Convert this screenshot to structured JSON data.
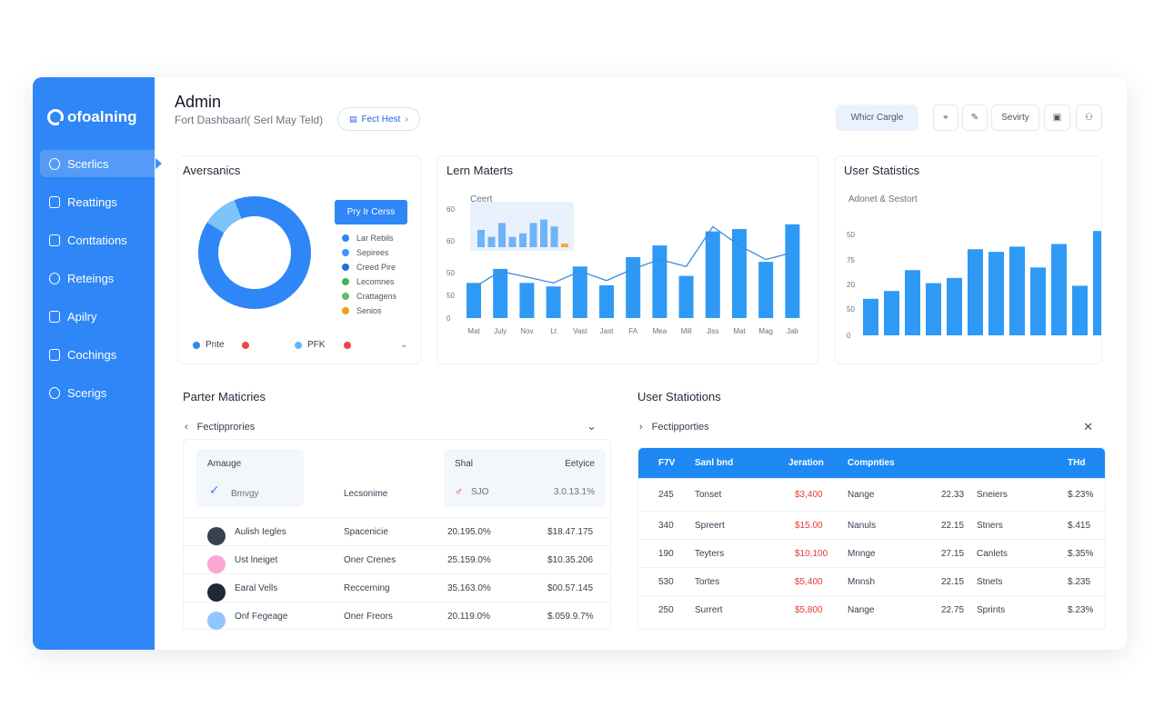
{
  "brand": {
    "name": "ofoalning"
  },
  "sidebar": {
    "items": [
      {
        "label": "Scerlics",
        "icon": "gear-icon",
        "active": true
      },
      {
        "label": "Reattings",
        "icon": "clipboard-icon"
      },
      {
        "label": "Conttations",
        "icon": "document-icon"
      },
      {
        "label": "Reteings",
        "icon": "search-icon"
      },
      {
        "label": "Apilry",
        "icon": "box-icon"
      },
      {
        "label": "Cochings",
        "icon": "calendar-icon"
      },
      {
        "label": "Scerigs",
        "icon": "pen-icon"
      }
    ]
  },
  "header": {
    "title": "Admin",
    "subtitle": "Fort Dashbaarl( Serl May Teld)",
    "pill": "Fect Hest",
    "primary_button": "Whicr Cargle",
    "text_button": "Sevirty",
    "icons": [
      "pin-icon",
      "edit-icon",
      "clipboard-icon",
      "user-icon"
    ]
  },
  "donut_card": {
    "title": "Aversanics",
    "button": "Pry Ir Cerss",
    "legend": [
      {
        "label": "Lar Rebils",
        "color": "#2f86f6"
      },
      {
        "label": "Sepirees",
        "color": "#3b9af7"
      },
      {
        "label": "Creed Pire",
        "color": "#1e6fe0"
      },
      {
        "label": "Lecomnes",
        "color": "#4caf50"
      },
      {
        "label": "Crattagens",
        "color": "#66bb6a"
      },
      {
        "label": "Senios",
        "color": "#f59e0b"
      }
    ],
    "footer": [
      {
        "label": "Pnte",
        "color": "#2f86f6"
      },
      {
        "label": "",
        "color": "#ef4444"
      },
      {
        "label": "PFK",
        "color": "#60b8f5"
      },
      {
        "label": "",
        "color": "#ef4444"
      }
    ]
  },
  "bar_line_card": {
    "title": "Lern Materts",
    "subtitle": "Ceert"
  },
  "stats_card": {
    "title": "User Statistics",
    "subtitle": "Adonet & Sestort"
  },
  "chart_data": [
    {
      "type": "pie",
      "variant": "donut",
      "values": [
        90,
        10
      ],
      "colors": [
        "#2f86f6",
        "#7cc4fa"
      ]
    },
    {
      "type": "bar",
      "categories": [
        "Mat",
        "July",
        "Nov",
        "Lt",
        "Vast",
        "Jast",
        "FA",
        "Mea",
        "Mill",
        "Jiss",
        "Mat",
        "Mag",
        "Jab"
      ],
      "values": [
        30,
        42,
        30,
        27,
        44,
        28,
        52,
        62,
        36,
        74,
        76,
        48,
        80
      ],
      "line_values": [
        26,
        40,
        35,
        30,
        40,
        32,
        42,
        50,
        44,
        78,
        62,
        50,
        56
      ],
      "ylabels": [
        "0",
        "50",
        "50",
        "60",
        "60"
      ],
      "inset_values": [
        50,
        30,
        70,
        30,
        40,
        70,
        80,
        60,
        10
      ],
      "colors": {
        "bar": "#2f9af6",
        "line": "#3b8de0"
      }
    },
    {
      "type": "bar",
      "values": [
        28,
        34,
        50,
        40,
        44,
        66,
        64,
        68,
        52,
        70,
        38,
        80
      ],
      "ylabels": [
        "0",
        "50",
        "20",
        "75",
        "50"
      ],
      "colors": {
        "bar": "#2f9af6"
      }
    }
  ],
  "left_table": {
    "title": "Parter Maticries",
    "filter": "Fectipprories",
    "header_left": "Amauge",
    "header_left_sub": "Bmvgy",
    "header_mid": "Lecsonime",
    "header_right_a": "Shal",
    "header_right_b": "Eetyice",
    "header_right_sub": "SJO",
    "header_right_val": "3.0.13.1%",
    "rows": [
      {
        "name": "Aulish Iegles",
        "type": "Spacenicie",
        "a": "20.195.0%",
        "b": "$18.47.175",
        "avatar": "#374151"
      },
      {
        "name": "Ust lneiget",
        "type": "Oner Crenes",
        "a": "25.159.0%",
        "b": "$10.35.206",
        "avatar": "#f9a8d4"
      },
      {
        "name": "Earal Vells",
        "type": "Reccerning",
        "a": "35.163.0%",
        "b": "$00.57.145",
        "avatar": "#1f2937"
      },
      {
        "name": "Onf Fegeage",
        "type": "Oner Freors",
        "a": "20.119.0%",
        "b": "$.059.9.7%",
        "avatar": "#93c5fd"
      }
    ]
  },
  "right_table": {
    "title": "User Statiotions",
    "filter": "Fectipporties",
    "columns": [
      "F7V",
      "Sanl bnd",
      "Jeration",
      "Compnties",
      "THd"
    ],
    "rows": [
      {
        "a": "245",
        "b": "Tonset",
        "c": "$3,400",
        "d": "Nange",
        "e": "22.33",
        "f": "Sneiers",
        "g": "$.23%"
      },
      {
        "a": "340",
        "b": "Spreert",
        "c": "$15.00",
        "d": "Nanuls",
        "e": "22.15",
        "f": "Stners",
        "g": "$.415"
      },
      {
        "a": "190",
        "b": "Teyters",
        "c": "$10,100",
        "d": "Mnnge",
        "e": "27.15",
        "f": "Canlets",
        "g": "$.35%"
      },
      {
        "a": "530",
        "b": "Tortes",
        "c": "$5,400",
        "d": "Mnnsh",
        "e": "22.15",
        "f": "Stnets",
        "g": "$.235"
      },
      {
        "a": "250",
        "b": "Surrert",
        "c": "$5,800",
        "d": "Nange",
        "e": "22.75",
        "f": "Sprints",
        "g": "$.23%"
      }
    ]
  }
}
